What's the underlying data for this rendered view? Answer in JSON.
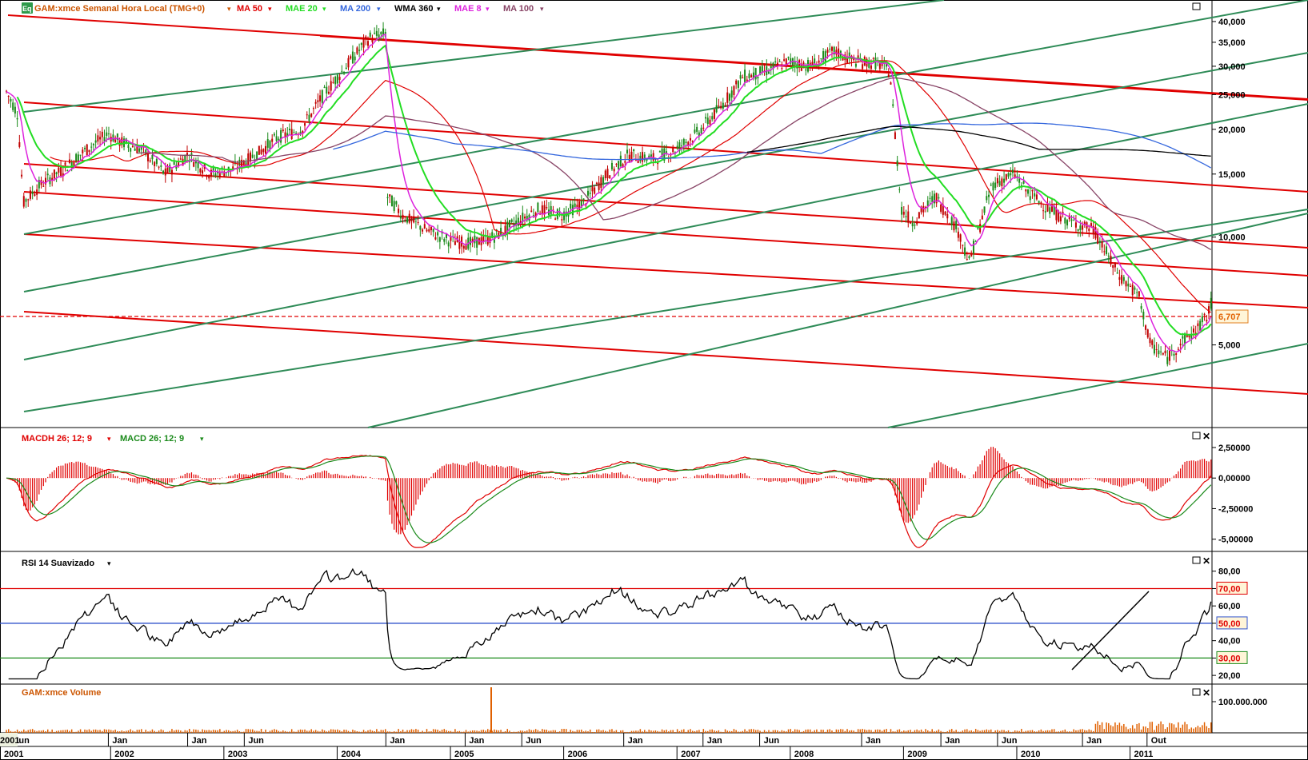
{
  "price_panel": {
    "icon": "eq-icon",
    "icon_text": "Eq",
    "title": "GAM:xmce Semanal Hora Local (TMG+0)",
    "title_color": "#cc5500",
    "indicators": [
      {
        "label": "MA 50",
        "color": "#e00000"
      },
      {
        "label": "MAE 20",
        "color": "#22dd22"
      },
      {
        "label": "MA 200",
        "color": "#3366dd"
      },
      {
        "label": "WMA 360",
        "color": "#000000"
      },
      {
        "label": "MAE 8",
        "color": "#dd22dd"
      },
      {
        "label": "MA 100",
        "color": "#884466"
      }
    ],
    "last_price_label": "6,707"
  },
  "macd_panel": {
    "indicators": [
      {
        "label": "MACDH 26; 12; 9",
        "color": "#e00000"
      },
      {
        "label": "MACD 26; 12; 9",
        "color": "#1a8a1a"
      }
    ]
  },
  "rsi_panel": {
    "indicators": [
      {
        "label": "RSI 14 Suavizado",
        "color": "#000000"
      }
    ],
    "level_labels": [
      "70,00",
      "50,00",
      "30,00"
    ]
  },
  "volume_panel": {
    "title": "GAM:xmce Volume",
    "title_color": "#cc5500"
  },
  "chart_data": [
    {
      "type": "candlestick",
      "panel": "price",
      "scale": "log",
      "y_ticks": [
        "40,000",
        "35,000",
        "30,000",
        "25,000",
        "20,000",
        "15,000",
        "10,000",
        "5,000"
      ],
      "y_tick_values": [
        40000,
        35000,
        30000,
        25000,
        20000,
        15000,
        10000,
        5000
      ],
      "ylim": [
        3000,
        45000
      ],
      "last_price": 6707,
      "x_time_range": [
        2001.0,
        2011.7
      ],
      "price_path": [
        [
          2001.0,
          25500
        ],
        [
          2001.1,
          22000
        ],
        [
          2001.15,
          12500
        ],
        [
          2001.3,
          14000
        ],
        [
          2001.5,
          15500
        ],
        [
          2001.7,
          17500
        ],
        [
          2001.9,
          19500
        ],
        [
          2002.0,
          18500
        ],
        [
          2002.2,
          17500
        ],
        [
          2002.4,
          15000
        ],
        [
          2002.6,
          17000
        ],
        [
          2002.8,
          15000
        ],
        [
          2003.0,
          15500
        ],
        [
          2003.2,
          17000
        ],
        [
          2003.4,
          19000
        ],
        [
          2003.6,
          20000
        ],
        [
          2003.8,
          25000
        ],
        [
          2004.0,
          30000
        ],
        [
          2004.2,
          36000
        ],
        [
          2004.35,
          37000
        ],
        [
          2004.36,
          13000
        ],
        [
          2004.5,
          11500
        ],
        [
          2004.7,
          10500
        ],
        [
          2004.9,
          9800
        ],
        [
          2005.1,
          9600
        ],
        [
          2005.3,
          10000
        ],
        [
          2005.5,
          11000
        ],
        [
          2005.7,
          12000
        ],
        [
          2005.9,
          11500
        ],
        [
          2006.1,
          12500
        ],
        [
          2006.3,
          15000
        ],
        [
          2006.5,
          17000
        ],
        [
          2006.7,
          16500
        ],
        [
          2006.9,
          17500
        ],
        [
          2007.1,
          19500
        ],
        [
          2007.3,
          23000
        ],
        [
          2007.5,
          28000
        ],
        [
          2007.7,
          29000
        ],
        [
          2007.9,
          31000
        ],
        [
          2008.1,
          30000
        ],
        [
          2008.3,
          33000
        ],
        [
          2008.5,
          31000
        ],
        [
          2008.7,
          30500
        ],
        [
          2008.8,
          29000
        ],
        [
          2008.9,
          12000
        ],
        [
          2009.0,
          11000
        ],
        [
          2009.2,
          13000
        ],
        [
          2009.4,
          10500
        ],
        [
          2009.5,
          8500
        ],
        [
          2009.7,
          14000
        ],
        [
          2009.9,
          15000
        ],
        [
          2010.0,
          13500
        ],
        [
          2010.2,
          12000
        ],
        [
          2010.4,
          11000
        ],
        [
          2010.6,
          10500
        ],
        [
          2010.8,
          8000
        ],
        [
          2011.0,
          6800
        ],
        [
          2011.1,
          5000
        ],
        [
          2011.25,
          4600
        ],
        [
          2011.35,
          5000
        ],
        [
          2011.5,
          5500
        ],
        [
          2011.6,
          6000
        ],
        [
          2011.65,
          6707
        ]
      ],
      "series": [
        {
          "name": "MA 50",
          "color": "#e00000"
        },
        {
          "name": "MAE 20",
          "color": "#22dd22"
        },
        {
          "name": "MA 200",
          "color": "#3366dd"
        },
        {
          "name": "WMA 360",
          "color": "#000000"
        },
        {
          "name": "MAE 8",
          "color": "#dd22dd"
        },
        {
          "name": "MA 100",
          "color": "#884466"
        }
      ]
    },
    {
      "type": "bar",
      "panel": "macd",
      "y_ticks": [
        "2,50000",
        "0,00000",
        "-2,50000",
        "-5,00000"
      ],
      "y_tick_values": [
        2.5,
        0,
        -2.5,
        -5
      ],
      "ylim": [
        -6,
        4
      ],
      "series": [
        {
          "name": "MACDH 26; 12; 9",
          "color": "#e00000"
        },
        {
          "name": "MACD 26; 12; 9",
          "color": "#1a8a1a"
        }
      ]
    },
    {
      "type": "line",
      "panel": "rsi",
      "y_ticks": [
        "80,00",
        "70,00",
        "60,00",
        "50,00",
        "40,00",
        "30,00",
        "20,00"
      ],
      "y_tick_values": [
        80,
        70,
        60,
        50,
        40,
        30,
        20
      ],
      "ylim": [
        15,
        90
      ],
      "levels": [
        70,
        50,
        30
      ],
      "level_colors": [
        "#e00000",
        "#3355cc",
        "#1a8a1a"
      ],
      "series": [
        {
          "name": "RSI 14 Suavizado",
          "color": "#000000"
        }
      ]
    },
    {
      "type": "bar",
      "panel": "volume",
      "y_ticks": [
        "100.000.000"
      ],
      "y_tick_values": [
        100000000
      ],
      "series": [
        {
          "name": "GAM:xmce Volume",
          "color": "#e06000"
        }
      ]
    }
  ],
  "x_axis": {
    "months": [
      {
        "label": "Jun",
        "t": 2001.03
      },
      {
        "label": "Jan",
        "t": 2001.9
      },
      {
        "label": "Jan",
        "t": 2002.6
      },
      {
        "label": "Jun",
        "t": 2003.1
      },
      {
        "label": "Jan",
        "t": 2004.35
      },
      {
        "label": "Jan",
        "t": 2005.05
      },
      {
        "label": "Jun",
        "t": 2005.55
      },
      {
        "label": "Jan",
        "t": 2006.45
      },
      {
        "label": "Jan",
        "t": 2007.15
      },
      {
        "label": "Jun",
        "t": 2007.65
      },
      {
        "label": "Jan",
        "t": 2008.55
      },
      {
        "label": "Jan",
        "t": 2009.25
      },
      {
        "label": "Jun",
        "t": 2009.75
      },
      {
        "label": "Jan",
        "t": 2010.5
      },
      {
        "label": "Out",
        "t": 2011.07
      }
    ],
    "corner_label": "2001",
    "years": [
      {
        "label": "2001",
        "t": 2001.18
      },
      {
        "label": "2002",
        "t": 2001.92
      },
      {
        "label": "2003",
        "t": 2002.92
      },
      {
        "label": "2004",
        "t": 2003.92
      },
      {
        "label": "2005",
        "t": 2004.92
      },
      {
        "label": "2006",
        "t": 2005.92
      },
      {
        "label": "2007",
        "t": 2006.92
      },
      {
        "label": "2008",
        "t": 2007.92
      },
      {
        "label": "2009",
        "t": 2008.92
      },
      {
        "label": "2010",
        "t": 2009.92
      },
      {
        "label": "2011",
        "t": 2010.92
      }
    ]
  }
}
